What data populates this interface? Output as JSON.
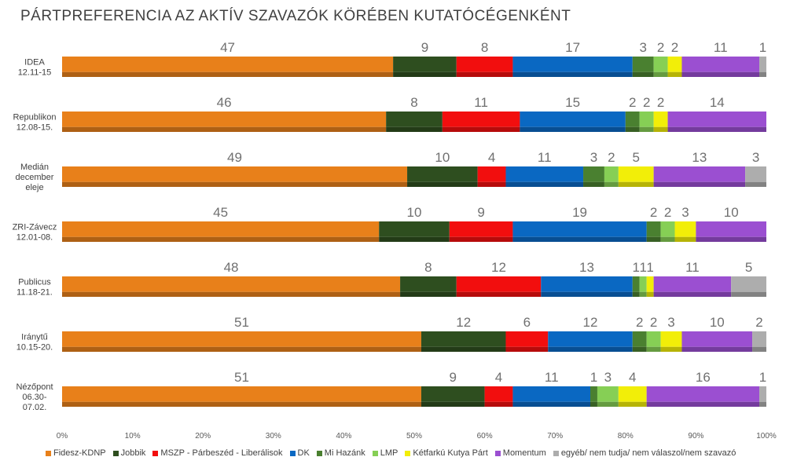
{
  "chart_data": {
    "type": "bar",
    "orientation": "horizontal",
    "stacked": true,
    "title": "PÁRTPREFERENCIA AZ AKTÍV SZAVAZÓK KÖRÉBEN KUTATÓCÉGENKÉNT",
    "categories": [
      [
        "IDEA",
        "12.11-15"
      ],
      [
        "Republikon",
        "12.08-15."
      ],
      [
        "Medián",
        "december",
        "eleje"
      ],
      [
        "ZRI-Závecz",
        "12.01-08."
      ],
      [
        "Publicus",
        "11.18-21."
      ],
      [
        "Iránytű",
        "10.15-20."
      ],
      [
        "Nézőpont",
        "06.30-",
        "07.02."
      ]
    ],
    "series": [
      {
        "name": "Fidesz-KDNP",
        "color": "#E8801A",
        "values": [
          47,
          46,
          49,
          45,
          48,
          51,
          51
        ]
      },
      {
        "name": "Jobbik",
        "color": "#2E4E1F",
        "values": [
          9,
          8,
          10,
          10,
          8,
          12,
          9
        ]
      },
      {
        "name": "MSZP - Párbeszéd - Liberálisok",
        "color": "#F20E0E",
        "values": [
          8,
          11,
          4,
          9,
          12,
          6,
          4
        ]
      },
      {
        "name": "DK",
        "color": "#0A68C2",
        "values": [
          17,
          15,
          11,
          19,
          13,
          12,
          11
        ]
      },
      {
        "name": "Mi Hazánk",
        "color": "#4A8030",
        "values": [
          3,
          2,
          3,
          2,
          1,
          2,
          1
        ]
      },
      {
        "name": "LMP",
        "color": "#86CF55",
        "values": [
          2,
          2,
          2,
          2,
          1,
          2,
          3
        ]
      },
      {
        "name": "Kétfarkú Kutya Párt",
        "color": "#F2EE08",
        "values": [
          2,
          2,
          5,
          3,
          1,
          3,
          4
        ]
      },
      {
        "name": "Momentum",
        "color": "#9B4FD1",
        "values": [
          11,
          14,
          13,
          10,
          11,
          10,
          16
        ]
      },
      {
        "name": "egyéb/ nem tudja/ nem válaszol/nem szavazó",
        "color": "#ADADAD",
        "values": [
          1,
          0,
          3,
          0,
          5,
          2,
          1
        ]
      }
    ],
    "x_ticks": [
      "0%",
      "10%",
      "20%",
      "30%",
      "40%",
      "50%",
      "60%",
      "70%",
      "80%",
      "90%",
      "100%"
    ],
    "xlim": [
      0,
      100
    ],
    "legend_position": "bottom",
    "grid": false
  }
}
